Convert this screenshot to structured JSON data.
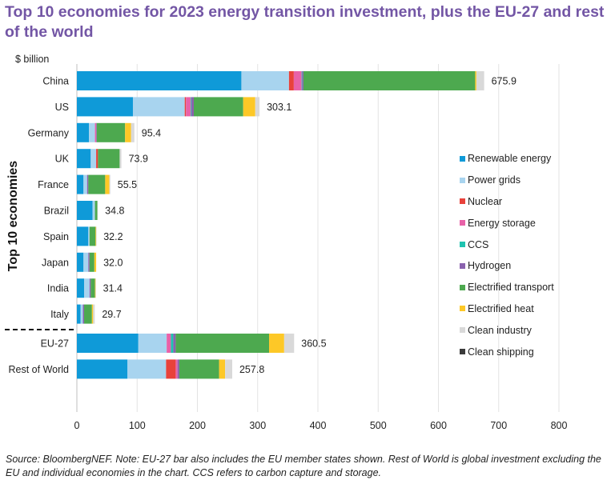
{
  "chart_data": {
    "type": "bar",
    "orientation": "horizontal",
    "stacked": true,
    "title": "Top 10 economies for 2023 energy transition investment, plus the EU-27 and rest of the world",
    "unit_label": "$ billion",
    "ylabel": "Top 10 economies",
    "xlabel": "",
    "xlim": [
      0,
      800
    ],
    "xticks": [
      0,
      100,
      200,
      300,
      400,
      500,
      600,
      700,
      800
    ],
    "grid": true,
    "legend_position": "right",
    "categories": [
      "China",
      "US",
      "Germany",
      "UK",
      "France",
      "Brazil",
      "Spain",
      "Japan",
      "India",
      "Italy",
      "EU-27",
      "Rest of World"
    ],
    "separator_after_index": 9,
    "totals": [
      675.9,
      303.1,
      95.4,
      73.9,
      55.5,
      34.8,
      32.2,
      32.0,
      31.4,
      29.7,
      360.5,
      257.8
    ],
    "total_labels": [
      "675.9",
      "303.1",
      "95.4",
      "73.9",
      "55.5",
      "34.8",
      "32.2",
      "32.0",
      "31.4",
      "29.7",
      "360.5",
      "257.8"
    ],
    "series": [
      {
        "name": "Renewable energy",
        "color": "#0f9ad8",
        "values": [
          273,
          93,
          20,
          23,
          11,
          26,
          19,
          11,
          12,
          6,
          102,
          84
        ]
      },
      {
        "name": "Power grids",
        "color": "#a8d4ef",
        "values": [
          79,
          86,
          10,
          9,
          6,
          4,
          2,
          8,
          9,
          4,
          47,
          64
        ]
      },
      {
        "name": "Nuclear",
        "color": "#e8423b",
        "values": [
          8,
          2,
          0,
          3,
          0,
          0,
          0,
          0,
          0,
          0,
          0,
          16
        ]
      },
      {
        "name": "Energy storage",
        "color": "#e862a8",
        "values": [
          13,
          8,
          2,
          0,
          0,
          0,
          0,
          0,
          0,
          0,
          7,
          3
        ]
      },
      {
        "name": "CCS",
        "color": "#1fc3b0",
        "values": [
          1,
          1,
          0,
          0,
          0,
          0,
          0,
          0,
          0,
          0,
          4,
          0
        ]
      },
      {
        "name": "Hydrogen",
        "color": "#8a62ae",
        "values": [
          2,
          4,
          1,
          0,
          2,
          0,
          0,
          2,
          2,
          2,
          4,
          3
        ]
      },
      {
        "name": "Electrified transport",
        "color": "#4da94f",
        "values": [
          285,
          82,
          47,
          36,
          28,
          4,
          10,
          8,
          7,
          13,
          155,
          66
        ]
      },
      {
        "name": "Electrified heat",
        "color": "#fdc827",
        "values": [
          2,
          20,
          10,
          0,
          7,
          0,
          1,
          3,
          1,
          2,
          25,
          10
        ]
      },
      {
        "name": "Clean industry",
        "color": "#d9d9d9",
        "values": [
          12.9,
          7.1,
          5.4,
          2.9,
          1.5,
          0.8,
          0.2,
          0,
          0.4,
          2.7,
          16.5,
          11.8
        ]
      },
      {
        "name": "Clean shipping",
        "color": "#3a3a3a",
        "values": [
          0,
          0,
          0,
          0,
          0,
          0,
          0,
          0,
          0,
          0,
          0,
          0
        ]
      }
    ],
    "footnote": "Source: BloombergNEF. Note: EU-27 bar also includes the EU member states shown. Rest of World is global investment excluding the EU and individual economies in the chart. CCS refers to carbon capture and storage."
  }
}
